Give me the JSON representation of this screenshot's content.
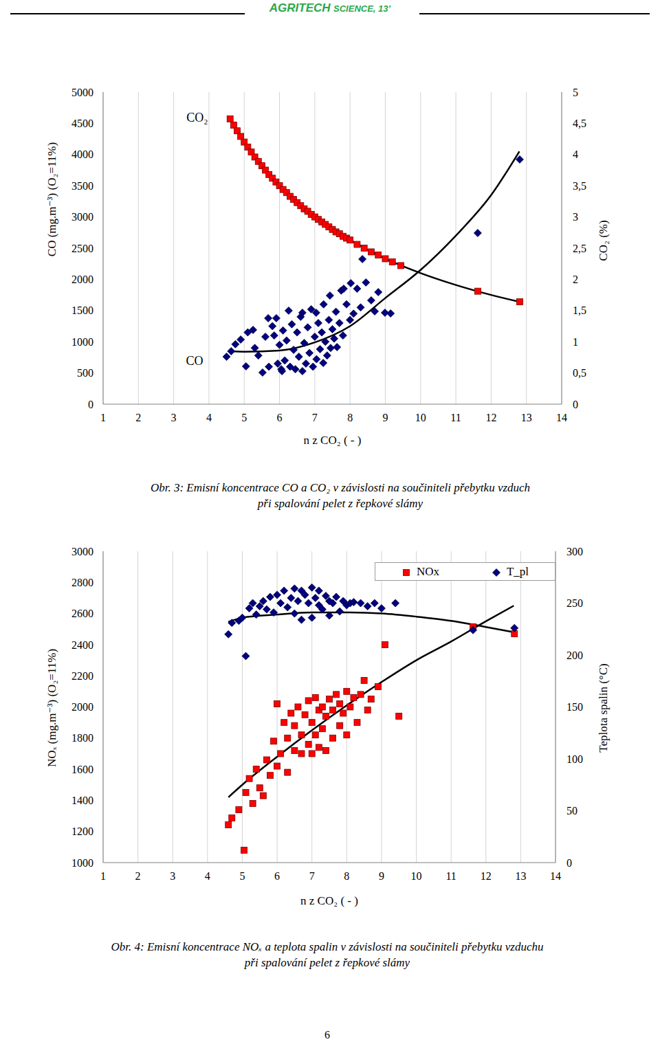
{
  "header": {
    "title": [
      "AGRITECH",
      "SCIENCE, 13’"
    ]
  },
  "page_number": "6",
  "chart_data": [
    {
      "type": "scatter",
      "title": "Obr. 3: Emisní koncentrace CO a CO₂ v závislosti na součiniteli přebytku vzduch\npři spalování pelet z řepkové slámy",
      "x_label": "n z CO₂ ( - )",
      "y_label": "CO (mg.m⁻³) (O₂=11%)",
      "y2_label": "CO₂ (%)",
      "xlim": [
        1,
        14
      ],
      "xticks": [
        1,
        2,
        3,
        4,
        5,
        6,
        7,
        8,
        9,
        10,
        11,
        12,
        13,
        14
      ],
      "ylim": [
        0,
        5000
      ],
      "yticks": [
        0,
        500,
        1000,
        1500,
        2000,
        2500,
        3000,
        3500,
        4000,
        4500,
        5000
      ],
      "y2lim": [
        0,
        5
      ],
      "y2ticks": [
        0,
        {
          "value": 0.5,
          "label": "0,5"
        },
        1,
        {
          "value": 1.5,
          "label": "1,5"
        },
        2,
        {
          "value": 2.5,
          "label": "2,5"
        },
        3,
        {
          "value": 3.5,
          "label": "3,5"
        },
        4,
        {
          "value": 4.5,
          "label": "4,5"
        },
        5
      ],
      "grid": "x",
      "annotations": [
        {
          "text": "CO₂",
          "x": 3.67,
          "y": 4600
        },
        {
          "text": "CO",
          "x": 3.59,
          "y": 700
        }
      ],
      "series": [
        {
          "name": "CO",
          "color": "#000080",
          "marker": "diamond",
          "axis": "y",
          "x": [
            4.5,
            4.63,
            4.75,
            4.9,
            5.05,
            5.1,
            5.25,
            5.3,
            5.4,
            5.52,
            5.6,
            5.68,
            5.7,
            5.8,
            5.85,
            5.91,
            5.95,
            6.0,
            6.05,
            6.07,
            6.1,
            6.15,
            6.2,
            6.26,
            6.3,
            6.35,
            6.4,
            6.45,
            6.5,
            6.55,
            6.6,
            6.65,
            6.65,
            6.7,
            6.75,
            6.8,
            6.85,
            6.9,
            6.95,
            7.0,
            7.04,
            7.05,
            7.1,
            7.15,
            7.2,
            7.24,
            7.25,
            7.3,
            7.35,
            7.4,
            7.43,
            7.45,
            7.5,
            7.55,
            7.6,
            7.63,
            7.7,
            7.75,
            7.8,
            7.82,
            7.9,
            8.0,
            8.02,
            8.1,
            8.2,
            8.3,
            8.35,
            8.45,
            8.6,
            8.7,
            8.8,
            8.99,
            9.15,
            11.62,
            12.81
          ],
          "values": [
            760,
            848,
            960,
            1035,
            606,
            1150,
            1190,
            900,
            780,
            507,
            1080,
            1377,
            600,
            1250,
            1100,
            1377,
            650,
            950,
            560,
            529,
            1180,
            700,
            1020,
            1498,
            600,
            1280,
            870,
            560,
            1150,
            760,
            1400,
            529,
            1465,
            980,
            650,
            1230,
            820,
            1520,
            600,
            1080,
            1465,
            720,
            1300,
            880,
            1150,
            660,
            1600,
            1000,
            780,
            1350,
            1740,
            900,
            1200,
            1050,
            1480,
            914,
            1300,
            1820,
            1100,
            1850,
            1600,
            1350,
            1938,
            1450,
            1850,
            1550,
            2324,
            1950,
            1663,
            1487,
            1795,
            1465,
            1454,
            2742,
            3921
          ]
        },
        {
          "name": "CO₂",
          "color": "#ff0000",
          "marker": "square",
          "axis": "y2",
          "x": [
            4.6,
            4.7,
            4.8,
            4.9,
            5.0,
            5.1,
            5.2,
            5.3,
            5.4,
            5.5,
            5.6,
            5.7,
            5.8,
            5.9,
            6.0,
            6.1,
            6.2,
            6.3,
            6.4,
            6.5,
            6.6,
            6.7,
            6.8,
            6.9,
            7.0,
            7.1,
            7.2,
            7.3,
            7.4,
            7.5,
            7.6,
            7.7,
            7.8,
            7.9,
            8.0,
            8.2,
            8.4,
            8.6,
            8.8,
            9.0,
            9.2,
            9.44,
            11.62,
            12.81
          ],
          "values": [
            4.57,
            4.47,
            4.38,
            4.29,
            4.2,
            4.12,
            4.04,
            3.96,
            3.89,
            3.82,
            3.75,
            3.68,
            3.62,
            3.56,
            3.5,
            3.44,
            3.39,
            3.33,
            3.28,
            3.23,
            3.18,
            3.13,
            3.09,
            3.04,
            3.0,
            2.96,
            2.92,
            2.88,
            2.84,
            2.8,
            2.76,
            2.73,
            2.69,
            2.66,
            2.63,
            2.56,
            2.5,
            2.44,
            2.39,
            2.33,
            2.28,
            2.22,
            1.81,
            1.64
          ]
        },
        {
          "type": "line",
          "color": "#000000",
          "axis": "y",
          "x": [
            4.6,
            5,
            6,
            7,
            8,
            9,
            10,
            11,
            12,
            12.8
          ],
          "values": [
            850,
            840,
            860,
            990,
            1250,
            1700,
            2150,
            2700,
            3350,
            4050
          ]
        },
        {
          "type": "line",
          "color": "#000000",
          "axis": "y2",
          "x": [
            4.6,
            5,
            6,
            7,
            8,
            9,
            10,
            11,
            12,
            12.8
          ],
          "values": [
            4.57,
            4.2,
            3.5,
            3.0,
            2.63,
            2.33,
            2.1,
            1.91,
            1.75,
            1.64
          ]
        }
      ]
    },
    {
      "type": "scatter",
      "title": "Obr. 4: Emisní koncentrace NOₓ a teplota spalin v závislosti na součiniteli přebytku vzduchu\npři spalování pelet z řepkové slámy",
      "x_label": "n z CO₂ ( - )",
      "y_label": "NOₓ (mg.m⁻³) (O₂=11%)",
      "y2_label": "Teplota spalin (°C)",
      "xlim": [
        1,
        14
      ],
      "xticks": [
        1,
        2,
        3,
        4,
        5,
        6,
        7,
        8,
        9,
        10,
        11,
        12,
        13,
        14
      ],
      "ylim": [
        1000,
        3000
      ],
      "yticks": [
        1000,
        1200,
        1400,
        1600,
        1800,
        2000,
        2200,
        2400,
        2600,
        2800,
        3000
      ],
      "y2lim": [
        0,
        300
      ],
      "y2ticks": [
        0,
        50,
        100,
        150,
        200,
        250,
        300
      ],
      "grid": "x",
      "legend": "upper right",
      "series": [
        {
          "name": "NOx",
          "color": "#ff0000",
          "marker": "square",
          "axis": "y",
          "x": [
            4.6,
            4.7,
            4.9,
            5.05,
            5.1,
            5.2,
            5.3,
            5.4,
            5.5,
            5.6,
            5.7,
            5.8,
            5.9,
            6.0,
            6.0,
            6.1,
            6.2,
            6.3,
            6.3,
            6.4,
            6.5,
            6.5,
            6.6,
            6.7,
            6.7,
            6.8,
            6.9,
            6.9,
            7.0,
            7.0,
            7.1,
            7.1,
            7.2,
            7.2,
            7.3,
            7.3,
            7.4,
            7.4,
            7.5,
            7.6,
            7.6,
            7.7,
            7.8,
            7.8,
            7.9,
            8.0,
            8.0,
            8.1,
            8.2,
            8.3,
            8.4,
            8.5,
            8.6,
            8.7,
            8.9,
            9.1,
            9.5,
            11.63,
            12.82
          ],
          "values": [
            1243,
            1287,
            1340,
            1080,
            1450,
            1540,
            1380,
            1600,
            1480,
            1430,
            1660,
            1560,
            1780,
            1620,
            2020,
            1700,
            1900,
            1580,
            1800,
            1960,
            1720,
            1880,
            2000,
            1700,
            1820,
            1950,
            1760,
            2040,
            1700,
            1900,
            1820,
            2060,
            1740,
            1980,
            1860,
            2000,
            1720,
            1940,
            2050,
            1800,
            1980,
            2080,
            1880,
            2020,
            1960,
            1820,
            2100,
            2000,
            2060,
            1900,
            2080,
            2170,
            1980,
            2050,
            2130,
            2400,
            1940,
            2514,
            2470
          ]
        },
        {
          "name": "T_pl",
          "color": "#000080",
          "marker": "diamond",
          "axis": "y2",
          "x": [
            4.6,
            4.7,
            4.9,
            5.0,
            5.1,
            5.2,
            5.3,
            5.4,
            5.5,
            5.6,
            5.7,
            5.8,
            5.9,
            6.0,
            6.1,
            6.2,
            6.3,
            6.4,
            6.5,
            6.5,
            6.6,
            6.7,
            6.7,
            6.8,
            6.9,
            7.0,
            7.0,
            7.1,
            7.2,
            7.2,
            7.3,
            7.4,
            7.5,
            7.5,
            7.6,
            7.7,
            7.8,
            7.9,
            8.0,
            8.1,
            8.2,
            8.4,
            8.6,
            8.8,
            9.0,
            9.4,
            11.63,
            12.82
          ],
          "values": [
            220,
            231,
            233,
            236,
            199,
            245,
            250,
            239,
            247,
            252,
            244,
            256,
            241,
            258,
            250,
            262,
            246,
            255,
            264,
            240,
            252,
            262,
            234,
            258,
            250,
            265,
            236,
            255,
            248,
            262,
            244,
            257,
            252,
            238,
            250,
            256,
            242,
            252,
            248,
            250,
            251,
            250,
            247,
            250,
            245,
            250,
            224,
            226
          ]
        },
        {
          "type": "line",
          "color": "#000000",
          "axis": "y",
          "x": [
            4.6,
            5,
            6,
            7,
            8,
            9,
            10,
            11,
            12,
            12.8
          ],
          "values": [
            1420,
            1500,
            1680,
            1850,
            2010,
            2160,
            2300,
            2420,
            2550,
            2650
          ]
        },
        {
          "type": "line",
          "color": "#000000",
          "axis": "y2",
          "x": [
            4.6,
            5,
            6,
            7,
            8,
            9,
            10,
            11,
            12,
            12.8
          ],
          "values": [
            232,
            236,
            239,
            241,
            241,
            240,
            237,
            233,
            227,
            222
          ]
        }
      ]
    }
  ]
}
